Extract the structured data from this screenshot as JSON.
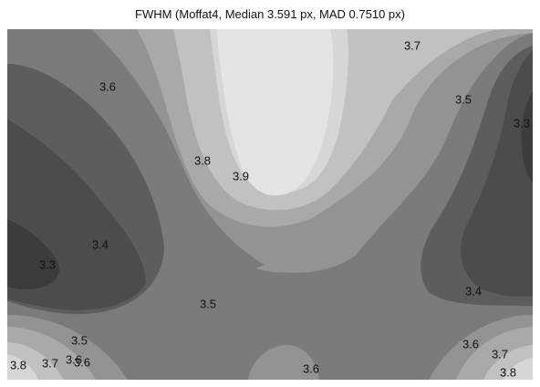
{
  "chart_data": {
    "type": "contour",
    "title": "FWHM (Moffat4, Median 3.591 px, MAD 0.7510 px)",
    "xlabel": "",
    "ylabel": "",
    "colormap": "grayscale",
    "contour_levels": [
      3.3,
      3.4,
      3.5,
      3.6,
      3.7,
      3.8,
      3.9
    ],
    "level_colors": [
      "#3c3c3c",
      "#4c4c4c",
      "#5d5d5d",
      "#7b7b7b",
      "#939393",
      "#a9a9a9",
      "#c1c1c1",
      "#d6d6d6",
      "#e4e4e4"
    ],
    "contour_labels": [
      {
        "text": "3.7"
      },
      {
        "text": "3.6"
      },
      {
        "text": "3.5"
      },
      {
        "text": "3.3"
      },
      {
        "text": "3.8"
      },
      {
        "text": "3.9"
      },
      {
        "text": "3.4"
      },
      {
        "text": "3.3"
      },
      {
        "text": "3.5"
      },
      {
        "text": "3.4"
      },
      {
        "text": "3.5"
      },
      {
        "text": "3.6"
      },
      {
        "text": "3.7"
      },
      {
        "text": "3.6"
      },
      {
        "text": "3.8"
      },
      {
        "text": "3.6"
      },
      {
        "text": "3.8"
      },
      {
        "text": "3.7"
      },
      {
        "text": "3.6"
      }
    ],
    "grid": false
  }
}
